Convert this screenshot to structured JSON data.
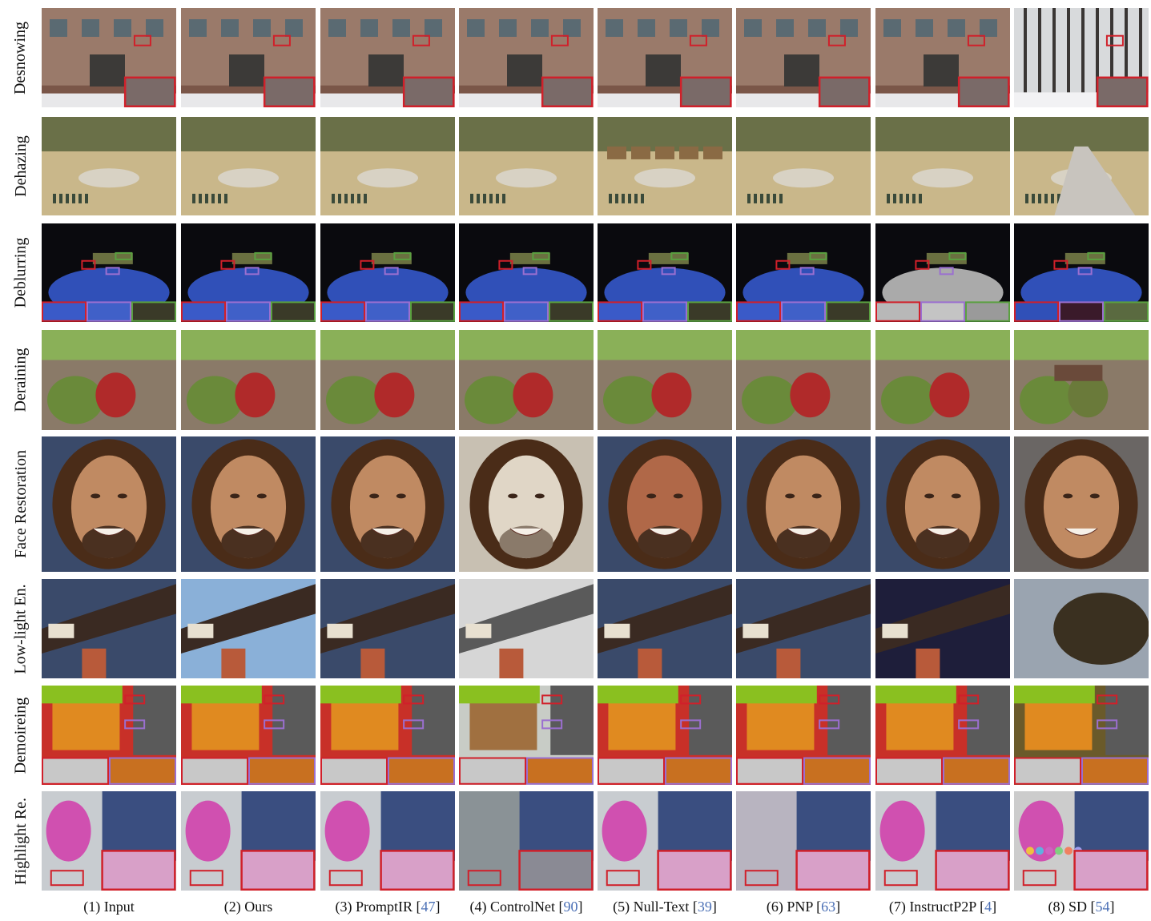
{
  "rows": [
    "Desnowing",
    "Dehazing",
    "Deblurring",
    "Deraining",
    "Face Restoration",
    "Low-light En.",
    "Demoireing",
    "Highlight Re."
  ],
  "columns": [
    {
      "label": "(1) Input",
      "cite": ""
    },
    {
      "label": "(2) Ours",
      "cite": ""
    },
    {
      "label": "(3) PromptIR [",
      "cite": "47",
      "close": "]"
    },
    {
      "label": "(4) ControlNet [",
      "cite": "90",
      "close": "]"
    },
    {
      "label": "(5) Null-Text [",
      "cite": "39",
      "close": "]"
    },
    {
      "label": "(6) PNP [",
      "cite": "63",
      "close": "]"
    },
    {
      "label": "(7) InstructP2P [",
      "cite": "4",
      "close": "]"
    },
    {
      "label": "(8) SD [",
      "cite": "54",
      "close": "]"
    }
  ],
  "colors": {
    "highlight_box_red": "#d0202a",
    "highlight_box_purple": "#9b6fd0",
    "highlight_box_green": "#5aa040",
    "cite_blue": "#4a6fb5"
  }
}
